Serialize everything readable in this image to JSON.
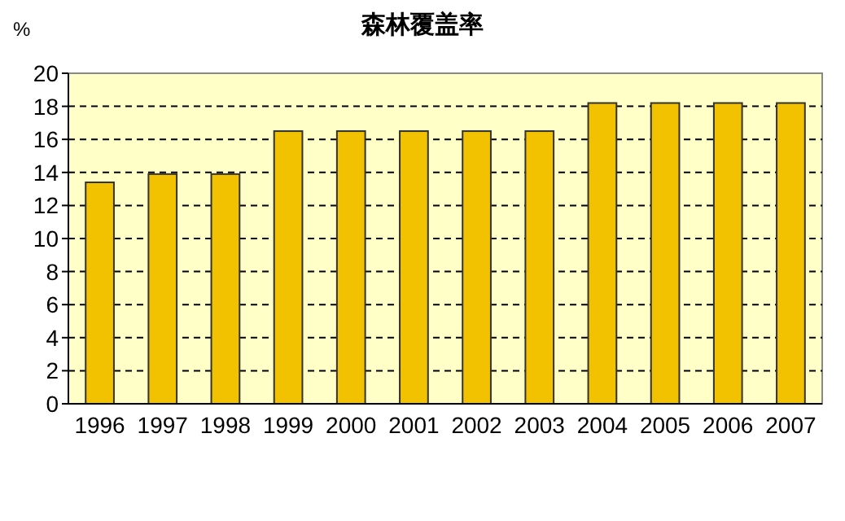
{
  "chart_data": {
    "type": "bar",
    "title": "森林覆盖率",
    "ylabel": "%",
    "categories": [
      "1996",
      "1997",
      "1998",
      "1999",
      "2000",
      "2001",
      "2002",
      "2003",
      "2004",
      "2005",
      "2006",
      "2007"
    ],
    "values": [
      13.4,
      13.9,
      13.9,
      16.5,
      16.5,
      16.5,
      16.5,
      16.5,
      18.2,
      18.2,
      18.2,
      18.2
    ],
    "color": "#f2c200",
    "ylim": [
      0,
      20
    ],
    "yticks": [
      0,
      2,
      4,
      6,
      8,
      10,
      12,
      14,
      16,
      18,
      20
    ],
    "grid": "y"
  }
}
